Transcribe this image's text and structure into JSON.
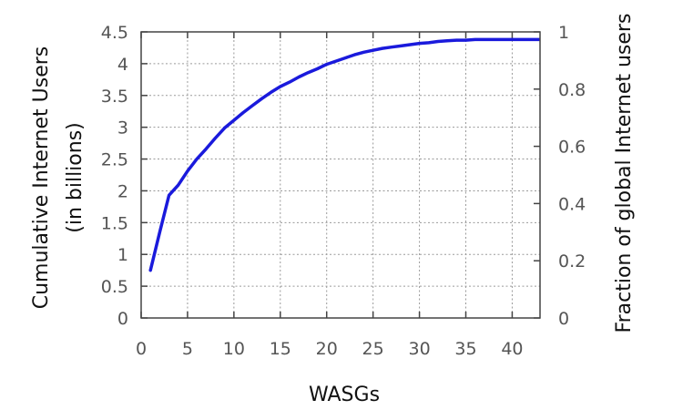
{
  "chart_data": {
    "type": "line",
    "xlabel": "WASGs",
    "ylabel_left_line1": "Cumulative Internet Users",
    "ylabel_left_line2": "(in billions)",
    "ylabel_right": "Fraction of global Internet users",
    "xlim": [
      0,
      43
    ],
    "ylim": [
      0,
      4.5
    ],
    "ylim_right": [
      0,
      1
    ],
    "xticks": [
      0,
      5,
      10,
      15,
      20,
      25,
      30,
      35,
      40
    ],
    "xtick_labels": [
      "0",
      "5",
      "10",
      "15",
      "20",
      "25",
      "30",
      "35",
      "40"
    ],
    "yticks": [
      0,
      0.5,
      1,
      1.5,
      2,
      2.5,
      3,
      3.5,
      4,
      4.5
    ],
    "ytick_labels": [
      "0",
      "0.5",
      "1",
      "1.5",
      "2",
      "2.5",
      "3",
      "3.5",
      "4",
      "4.5"
    ],
    "yticks_right": [
      0,
      0.2,
      0.4,
      0.6,
      0.8,
      1
    ],
    "ytick_right_labels": [
      "0",
      "0.2",
      "0.4",
      "0.6",
      "0.8",
      "1"
    ],
    "grid": true,
    "line_color": "#1a1adc",
    "series": [
      {
        "x": [
          1,
          2,
          3,
          4,
          5,
          6,
          7,
          8,
          9,
          10,
          11,
          12,
          13,
          14,
          15,
          16,
          17,
          18,
          19,
          20,
          21,
          22,
          23,
          24,
          25,
          26,
          27,
          28,
          29,
          30,
          31,
          32,
          33,
          34,
          35,
          36,
          37,
          38,
          39,
          40,
          41,
          42,
          43
        ],
        "values": [
          0.75,
          1.35,
          1.93,
          2.09,
          2.31,
          2.5,
          2.66,
          2.83,
          2.99,
          3.11,
          3.23,
          3.34,
          3.45,
          3.55,
          3.64,
          3.71,
          3.79,
          3.86,
          3.92,
          3.99,
          4.04,
          4.09,
          4.14,
          4.18,
          4.21,
          4.24,
          4.26,
          4.28,
          4.3,
          4.32,
          4.33,
          4.35,
          4.36,
          4.37,
          4.37,
          4.38,
          4.38,
          4.38,
          4.38,
          4.38,
          4.38,
          4.38,
          4.38
        ]
      }
    ]
  }
}
